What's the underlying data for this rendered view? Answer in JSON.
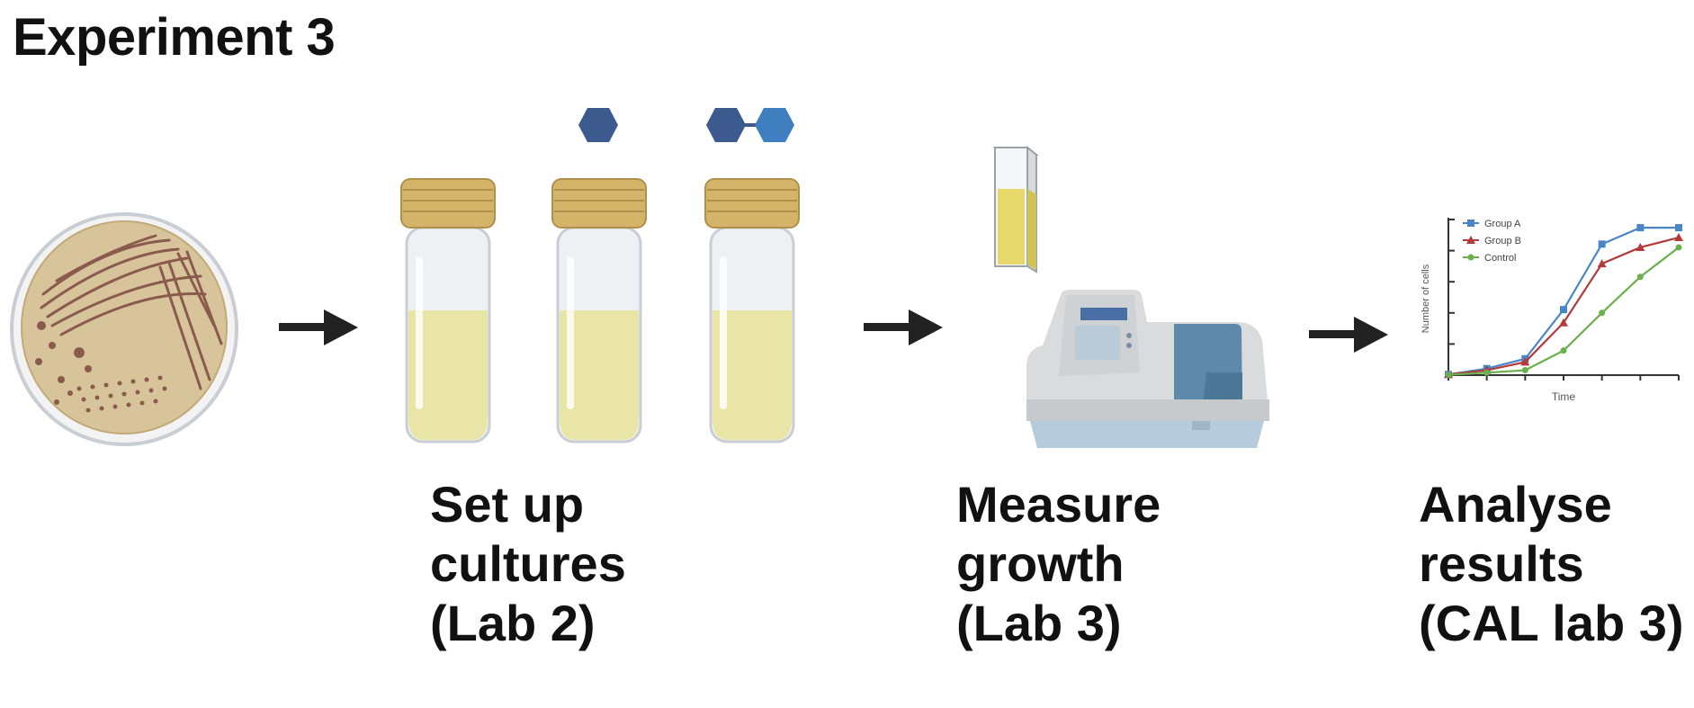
{
  "title": "Experiment 3",
  "steps": [
    {
      "lines": [
        "Set up",
        "cultures",
        "(Lab 2)"
      ]
    },
    {
      "lines": [
        "Measure",
        "growth",
        "(Lab 3)"
      ]
    },
    {
      "lines": [
        "Analyse",
        "results",
        "(CAL lab 3)"
      ]
    }
  ],
  "chart_data": {
    "type": "line",
    "xlabel": "Time",
    "ylabel": "Number of cells",
    "x": [
      0,
      1,
      2,
      3,
      4,
      5,
      6
    ],
    "series": [
      {
        "name": "Group A",
        "values": [
          0.4,
          4,
          10,
          40,
          80,
          90,
          90
        ],
        "color": "#4a86c5",
        "marker": "square"
      },
      {
        "name": "Group B",
        "values": [
          0.4,
          3,
          8,
          32,
          68,
          78,
          84
        ],
        "color": "#b23a3a",
        "marker": "triangle"
      },
      {
        "name": "Control",
        "values": [
          0.2,
          1.5,
          3,
          15,
          38,
          60,
          78
        ],
        "color": "#6ab04c",
        "marker": "circle"
      }
    ],
    "ylim": [
      0,
      95
    ],
    "legend": "top-left",
    "grid": false
  },
  "colors": {
    "plate_agar": "#d8c49a",
    "streak": "#8a5a4e",
    "cap_gold": "#d4b468",
    "medium": "#e9e5a6",
    "molecule_dark": "#3d5a8f",
    "molecule_light": "#3f7fbf",
    "arrow": "#222222"
  }
}
